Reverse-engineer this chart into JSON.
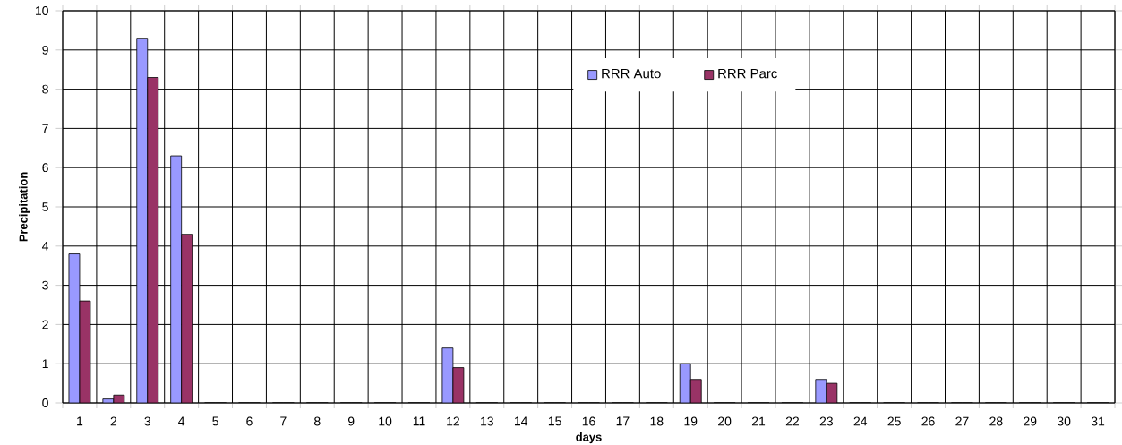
{
  "chart_data": {
    "type": "bar",
    "xlabel": "days",
    "ylabel": "Precipitation",
    "categories": [
      "1",
      "2",
      "3",
      "4",
      "5",
      "6",
      "7",
      "8",
      "9",
      "10",
      "11",
      "12",
      "13",
      "14",
      "15",
      "16",
      "17",
      "18",
      "19",
      "20",
      "21",
      "22",
      "23",
      "24",
      "25",
      "26",
      "27",
      "28",
      "29",
      "30",
      "31"
    ],
    "series": [
      {
        "name": "RRR Auto",
        "color": "#9999ff",
        "values": [
          3.8,
          0.1,
          9.3,
          6.3,
          0,
          0,
          0,
          0,
          0,
          0,
          0,
          1.4,
          0,
          0,
          0,
          0,
          0,
          0,
          1.0,
          0,
          0,
          0,
          0.6,
          0,
          0,
          0,
          0,
          0,
          0,
          0,
          0
        ]
      },
      {
        "name": "RRR Parc",
        "color": "#993366",
        "values": [
          2.6,
          0.2,
          8.3,
          4.3,
          0,
          0,
          0,
          0,
          0,
          0,
          0,
          0.9,
          0,
          0,
          0,
          0,
          0,
          0,
          0.6,
          0,
          0,
          0,
          0.5,
          0,
          0,
          0,
          0,
          0,
          0,
          0,
          0
        ]
      }
    ],
    "ylim": [
      0,
      10
    ],
    "yticks": [
      0,
      1,
      2,
      3,
      4,
      5,
      6,
      7,
      8,
      9,
      10
    ],
    "grid": true,
    "legend": "top right"
  }
}
